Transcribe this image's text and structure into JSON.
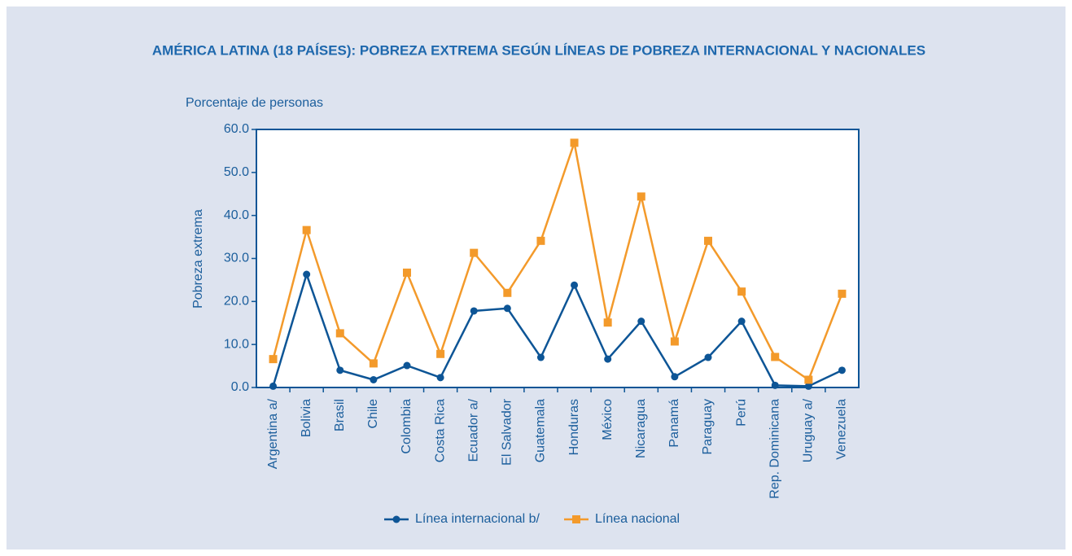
{
  "chart_data": {
    "type": "line",
    "title": "AMÉRICA LATINA (18 PAÍSES): POBREZA EXTREMA SEGÚN LÍNEAS DE POBREZA INTERNACIONAL Y NACIONALES",
    "subtitle": "Porcentaje de personas",
    "y_label": "Pobreza extrema",
    "categories": [
      "Argentina a/",
      "Bolivia",
      "Brasil",
      "Chile",
      "Colombia",
      "Costa Rica",
      "Ecuador a/",
      "El Salvador",
      "Guatemala",
      "Honduras",
      "México",
      "Nicaragua",
      "Panamá",
      "Paraguay",
      "Perú",
      "Rep. Dominicana",
      "Uruguay a/",
      "Venezuela"
    ],
    "series": [
      {
        "name": "Línea internacional b/",
        "color": "#0d5596",
        "marker": "circle",
        "values": [
          0.3,
          26.3,
          4.0,
          1.8,
          5.1,
          2.3,
          17.8,
          18.4,
          7.0,
          23.8,
          6.6,
          15.4,
          2.5,
          7.0,
          15.4,
          0.5,
          0.3,
          4.0
        ]
      },
      {
        "name": "Línea nacional",
        "color": "#f39a2b",
        "marker": "square",
        "values": [
          6.6,
          36.6,
          12.6,
          5.6,
          26.7,
          7.8,
          31.3,
          22.0,
          34.1,
          56.9,
          15.1,
          44.4,
          10.7,
          34.1,
          22.3,
          7.1,
          1.8,
          21.8
        ]
      }
    ],
    "ylim": [
      0,
      60
    ],
    "yticks": [
      {
        "value": 0,
        "label": "0.0"
      },
      {
        "value": 10,
        "label": "10.0"
      },
      {
        "value": 20,
        "label": "20.0"
      },
      {
        "value": 30,
        "label": "30.0"
      },
      {
        "value": 40,
        "label": "40.0"
      },
      {
        "value": 50,
        "label": "50.0"
      },
      {
        "value": 60,
        "label": "60.0"
      }
    ],
    "legend": "bottom"
  }
}
